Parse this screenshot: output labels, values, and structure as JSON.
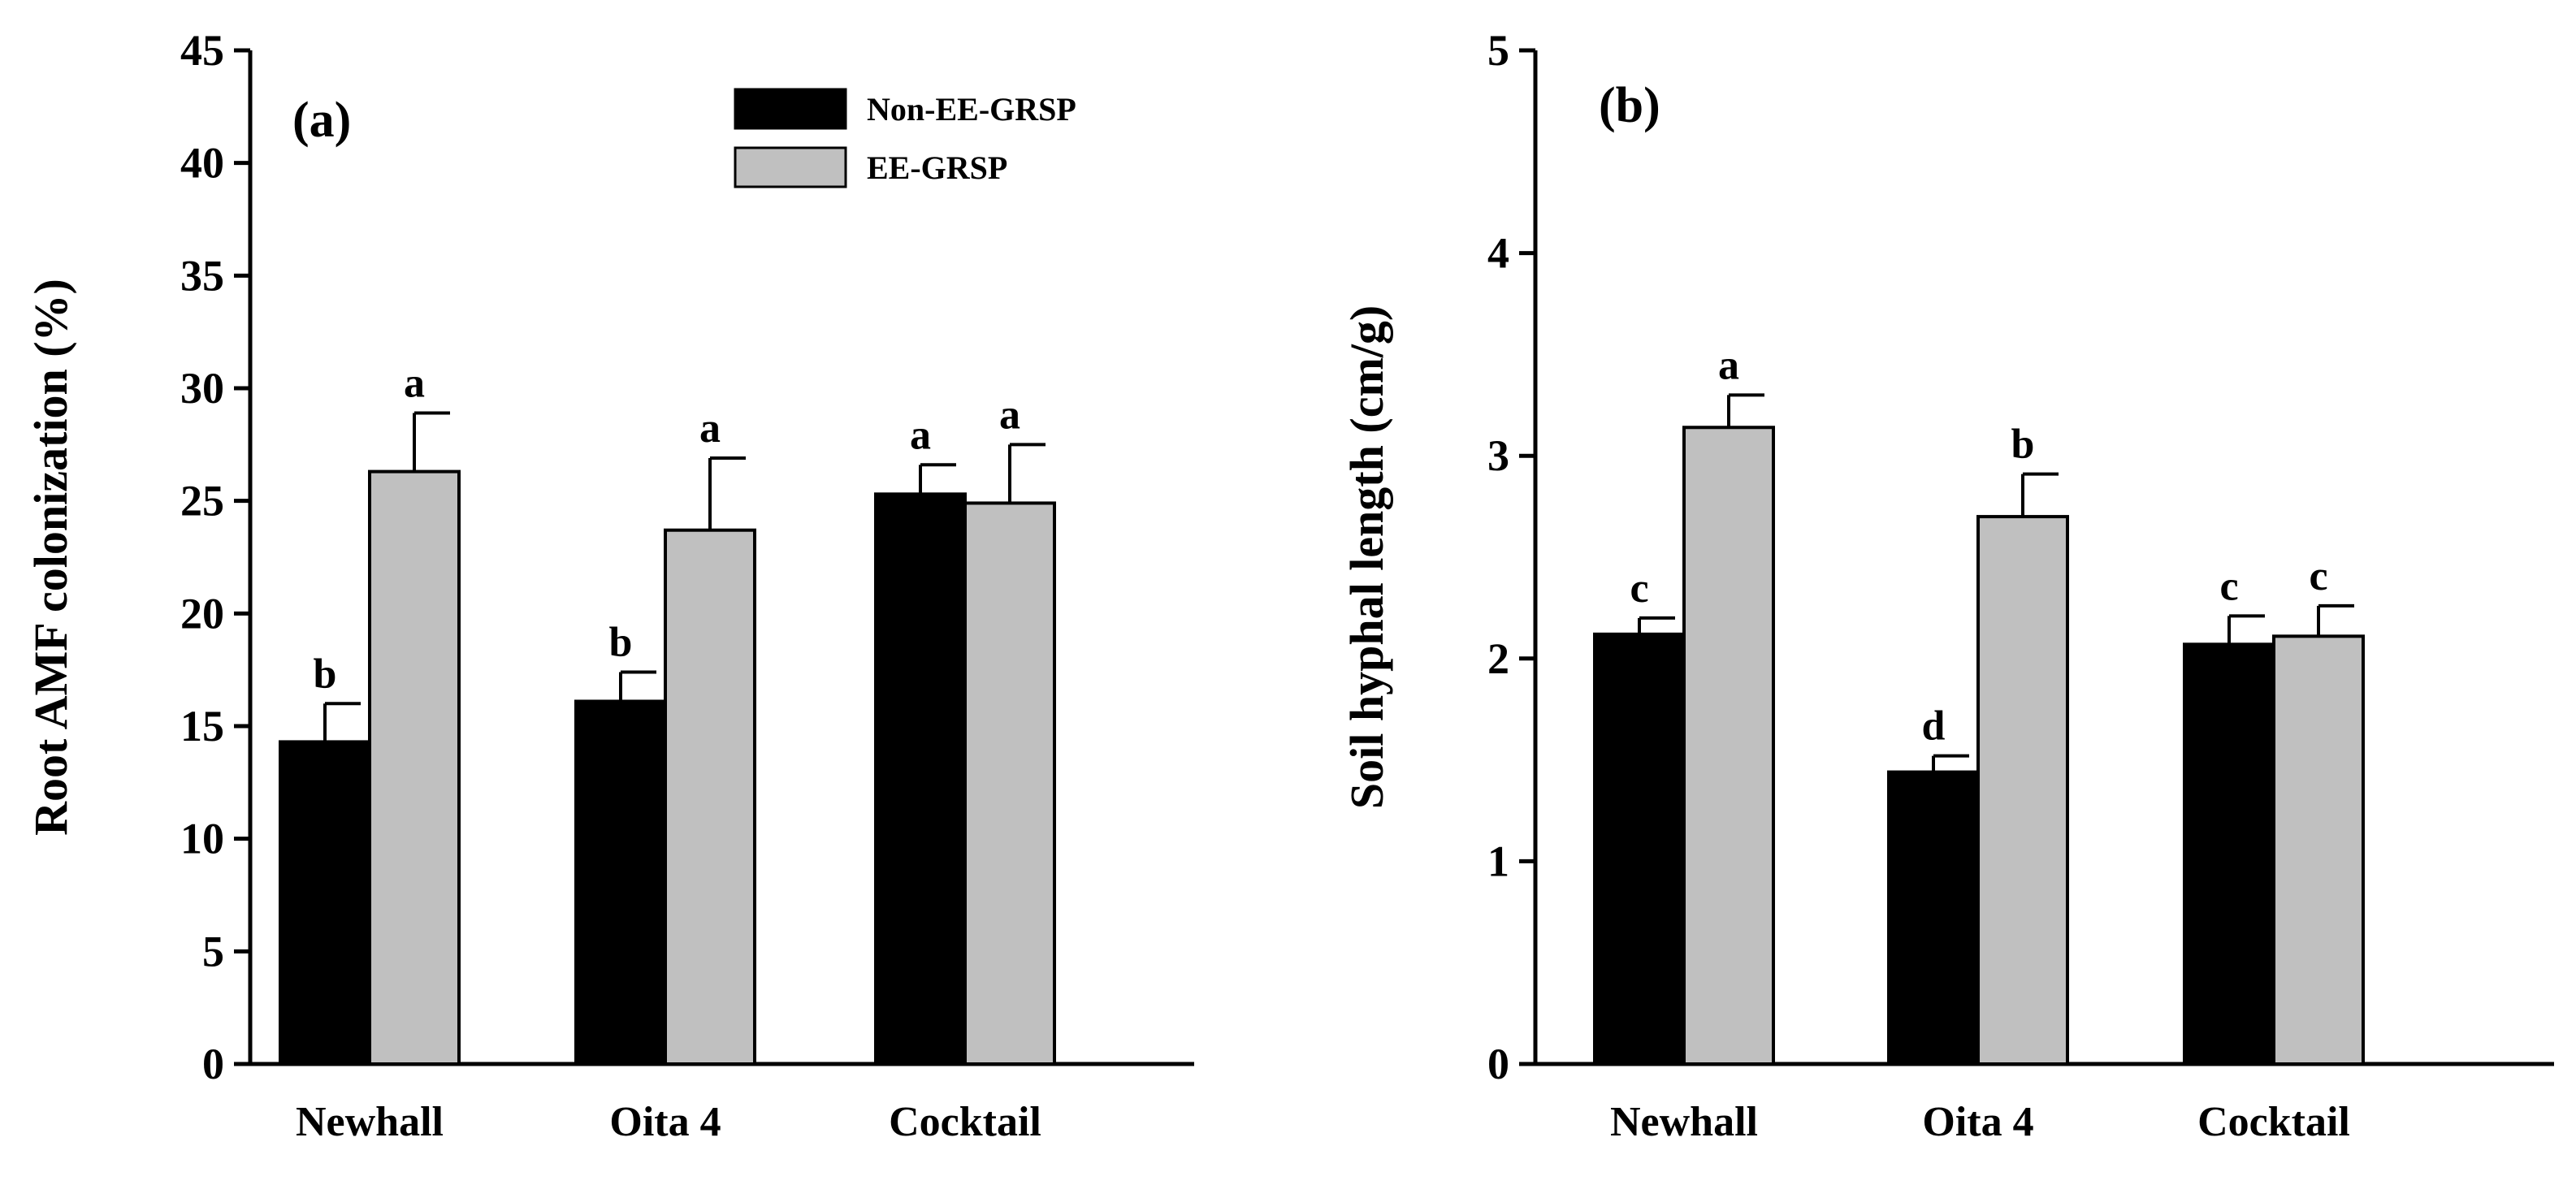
{
  "legend": [
    {
      "label": "Non-EE-GRSP",
      "color": "#000000"
    },
    {
      "label": "EE-GRSP",
      "color": "#c0c0c0"
    }
  ],
  "chart_data": [
    {
      "type": "bar",
      "panel_label": "(a)",
      "ylabel": "Root AMF colonization (%)",
      "xlabel": "",
      "ylim": [
        0,
        45
      ],
      "yticks": [
        "0",
        "5",
        "10",
        "15",
        "20",
        "25",
        "30",
        "35",
        "40",
        "45"
      ],
      "categories": [
        "Newhall",
        "Oita 4",
        "Cocktail"
      ],
      "series": [
        {
          "name": "Non-EE-GRSP",
          "color": "#000000",
          "values": [
            14.3,
            16.1,
            25.3
          ],
          "errors": [
            1.7,
            1.3,
            1.3
          ],
          "letters": [
            "b",
            "b",
            "a"
          ]
        },
        {
          "name": "EE-GRSP",
          "color": "#c0c0c0",
          "values": [
            26.3,
            23.7,
            24.9
          ],
          "errors": [
            2.6,
            3.2,
            2.6
          ],
          "letters": [
            "a",
            "a",
            "a"
          ]
        }
      ]
    },
    {
      "type": "bar",
      "panel_label": "(b)",
      "ylabel": "Soil hyphal length (cm/g)",
      "xlabel": "",
      "ylim": [
        0,
        5
      ],
      "yticks": [
        "0",
        "1",
        "2",
        "3",
        "4",
        "5"
      ],
      "categories": [
        "Newhall",
        "Oita 4",
        "Cocktail"
      ],
      "series": [
        {
          "name": "Non-EE-GRSP",
          "color": "#000000",
          "values": [
            2.12,
            1.44,
            2.07
          ],
          "errors": [
            0.08,
            0.08,
            0.14
          ],
          "letters": [
            "c",
            "d",
            "c"
          ]
        },
        {
          "name": "EE-GRSP",
          "color": "#c0c0c0",
          "values": [
            3.14,
            2.7,
            2.11
          ],
          "errors": [
            0.16,
            0.21,
            0.15
          ],
          "letters": [
            "a",
            "b",
            "c"
          ]
        }
      ]
    }
  ]
}
